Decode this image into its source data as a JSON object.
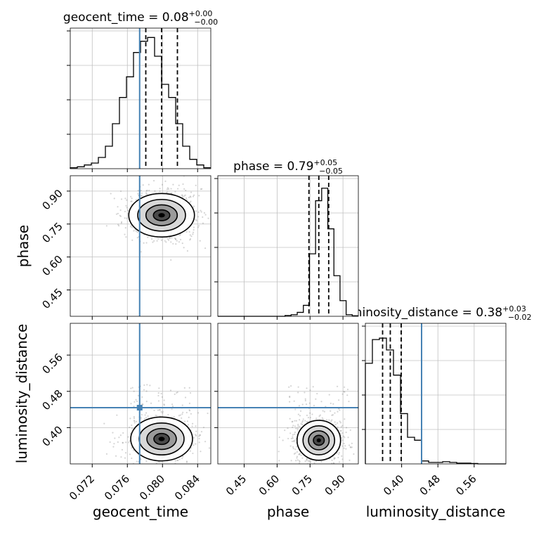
{
  "figure": {
    "type": "corner-plot"
  },
  "colors": {
    "truth": "#4682b4",
    "hist": "#000000",
    "grid": "#c0c0c0",
    "samples": "#888888"
  },
  "titles": {
    "geocent_time": {
      "name": "geocent_time",
      "eq": " = 0.08",
      "sup": "+0.00",
      "sub": "−0.00"
    },
    "phase": {
      "name": "phase",
      "eq": " = 0.79",
      "sup": "+0.05",
      "sub": "−0.05"
    },
    "luminosity_distance": {
      "name": "luminosity_distance",
      "eq": " = 0.38",
      "sup": "+0.03",
      "sub": "−0.02"
    }
  },
  "axis_labels": {
    "x": [
      "geocent_time",
      "phase",
      "luminosity_distance"
    ],
    "y": [
      "phase",
      "luminosity_distance"
    ]
  },
  "chart_data": {
    "type": "corner",
    "parameters": [
      {
        "name": "geocent_time",
        "range": [
          0.0695,
          0.0855
        ],
        "ticks": [
          0.072,
          0.076,
          0.08,
          0.084
        ],
        "tick_labels": [
          "0.072",
          "0.076",
          "0.080",
          "0.084"
        ],
        "quantiles": [
          0.0781,
          0.0799,
          0.0817
        ],
        "truth": 0.0774,
        "hist": [
          0.005,
          0.01,
          0.02,
          0.03,
          0.06,
          0.12,
          0.24,
          0.38,
          0.49,
          0.62,
          0.68,
          0.7,
          0.6,
          0.45,
          0.38,
          0.24,
          0.12,
          0.05,
          0.02,
          0.005
        ],
        "hist_ymax": 0.75
      },
      {
        "name": "phase",
        "range": [
          0.33,
          0.97
        ],
        "ticks": [
          0.45,
          0.6,
          0.75,
          0.9
        ],
        "tick_labels": [
          "0.45",
          "0.60",
          "0.75",
          "0.90"
        ],
        "quantiles": [
          0.745,
          0.79,
          0.835
        ],
        "hist": [
          0,
          0,
          0,
          0,
          0,
          0,
          0,
          0,
          0,
          0,
          0,
          0.005,
          0.01,
          0.025,
          0.07,
          0.4,
          0.74,
          0.82,
          0.56,
          0.26,
          0.1,
          0.01,
          0.003
        ],
        "hist_ymax": 0.9
      },
      {
        "name": "luminosity_distance",
        "range": [
          0.32,
          0.63
        ],
        "ticks": [
          0.4,
          0.48,
          0.56
        ],
        "tick_labels": [
          "0.40",
          "0.48",
          "0.56"
        ],
        "quantiles": [
          0.358,
          0.375,
          0.399
        ],
        "truth": 0.444,
        "hist": [
          0.68,
          0.84,
          0.85,
          0.77,
          0.6,
          0.34,
          0.18,
          0.16,
          0.02,
          0.01,
          0.01,
          0.015,
          0.01,
          0.005,
          0.005,
          0.003,
          0,
          0,
          0,
          0
        ],
        "hist_ymax": 0.95
      }
    ],
    "pairs": [
      {
        "x": "geocent_time",
        "y": "phase",
        "peak": [
          0.0799,
          0.79
        ],
        "spread": [
          0.0017,
          0.045
        ],
        "scatter_extent": [
          0.0035,
          0.13
        ]
      },
      {
        "x": "geocent_time",
        "y": "luminosity_distance",
        "peak": [
          0.0799,
          0.375
        ],
        "spread": [
          0.0016,
          0.022
        ],
        "scatter_extent": [
          0.0035,
          0.12
        ]
      },
      {
        "x": "phase",
        "y": "luminosity_distance",
        "peak": [
          0.79,
          0.372
        ],
        "spread": [
          0.045,
          0.02
        ],
        "scatter_extent": [
          0.14,
          0.12
        ]
      }
    ],
    "truth_marker": {
      "x": "geocent_time",
      "y": "luminosity_distance"
    },
    "grid": true
  }
}
